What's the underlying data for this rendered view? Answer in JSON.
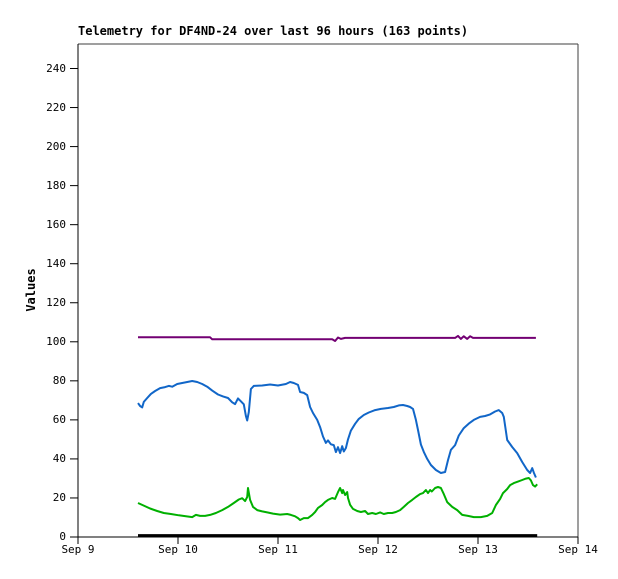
{
  "window": {
    "background_color": "#ffffff",
    "text_color": "#000000"
  },
  "chart_data": {
    "type": "line",
    "title": "Telemetry for DF4ND-24 over last 96 hours (163 points)",
    "xlabel": "",
    "ylabel": "Values",
    "grid": false,
    "legend": null,
    "x_axis": {
      "tick_labels": [
        "Sep 9",
        "Sep 10",
        "Sep 11",
        "Sep 12",
        "Sep 13",
        "Sep 14"
      ],
      "x_encoding": "hours since Sep 9 00:00",
      "range_hours": [
        0,
        120
      ],
      "data_span_hours": [
        14.4,
        110.2
      ]
    },
    "y_axis": {
      "min": 0,
      "max": 240,
      "tick_step": 20,
      "ticks": [
        0,
        20,
        40,
        60,
        80,
        100,
        120,
        140,
        160,
        180,
        200,
        220,
        240
      ]
    },
    "frame_colors": {
      "left_bottom": "#000000",
      "top_right": "#3f3f3f"
    },
    "series": [
      {
        "name": "purple-line",
        "color": "#730073",
        "width": 2,
        "points": [
          [
            14.4,
            102.3
          ],
          [
            31.7,
            102.3
          ],
          [
            32.2,
            101.3
          ],
          [
            61.0,
            101.3
          ],
          [
            61.7,
            100.4
          ],
          [
            62.4,
            102.2
          ],
          [
            63.1,
            101.5
          ],
          [
            64.1,
            102.0
          ],
          [
            90.5,
            102.0
          ],
          [
            91.2,
            103.0
          ],
          [
            91.9,
            101.5
          ],
          [
            92.6,
            102.8
          ],
          [
            93.4,
            101.5
          ],
          [
            94.1,
            102.8
          ],
          [
            94.8,
            102.0
          ],
          [
            109.9,
            102.0
          ]
        ]
      },
      {
        "name": "blue-line",
        "color": "#1166c8",
        "width": 2,
        "points": [
          [
            14.4,
            68.6
          ],
          [
            14.9,
            67.1
          ],
          [
            15.4,
            66.4
          ],
          [
            15.8,
            69.2
          ],
          [
            16.6,
            71.2
          ],
          [
            17.5,
            73.3
          ],
          [
            18.5,
            74.8
          ],
          [
            19.7,
            76.3
          ],
          [
            20.9,
            76.8
          ],
          [
            21.8,
            77.4
          ],
          [
            22.6,
            77.0
          ],
          [
            23.8,
            78.4
          ],
          [
            25.0,
            78.9
          ],
          [
            26.2,
            79.4
          ],
          [
            27.4,
            79.9
          ],
          [
            28.6,
            79.4
          ],
          [
            29.8,
            78.4
          ],
          [
            31.0,
            77.0
          ],
          [
            32.2,
            75.0
          ],
          [
            33.6,
            73.0
          ],
          [
            34.8,
            72.0
          ],
          [
            36.0,
            71.2
          ],
          [
            37.0,
            69.0
          ],
          [
            37.7,
            68.1
          ],
          [
            38.4,
            71.0
          ],
          [
            39.1,
            69.5
          ],
          [
            39.8,
            68.0
          ],
          [
            40.3,
            62.0
          ],
          [
            40.6,
            59.7
          ],
          [
            41.0,
            64.0
          ],
          [
            41.5,
            75.8
          ],
          [
            42.2,
            77.4
          ],
          [
            44.2,
            77.6
          ],
          [
            46.1,
            78.1
          ],
          [
            48.0,
            77.6
          ],
          [
            49.9,
            78.4
          ],
          [
            50.9,
            79.4
          ],
          [
            51.8,
            78.9
          ],
          [
            52.8,
            77.9
          ],
          [
            53.3,
            74.3
          ],
          [
            54.2,
            73.8
          ],
          [
            55.0,
            72.7
          ],
          [
            55.7,
            66.6
          ],
          [
            56.4,
            63.5
          ],
          [
            57.4,
            60.0
          ],
          [
            58.1,
            56.3
          ],
          [
            58.8,
            51.5
          ],
          [
            59.5,
            48.2
          ],
          [
            60.0,
            49.5
          ],
          [
            60.7,
            47.5
          ],
          [
            61.4,
            47.1
          ],
          [
            61.9,
            43.5
          ],
          [
            62.4,
            46.0
          ],
          [
            62.9,
            43.0
          ],
          [
            63.4,
            46.5
          ],
          [
            63.8,
            43.8
          ],
          [
            64.3,
            45.6
          ],
          [
            64.8,
            50.0
          ],
          [
            65.5,
            54.5
          ],
          [
            66.5,
            58.0
          ],
          [
            67.4,
            60.5
          ],
          [
            68.6,
            62.5
          ],
          [
            69.8,
            63.8
          ],
          [
            71.3,
            65.0
          ],
          [
            72.7,
            65.6
          ],
          [
            74.4,
            66.1
          ],
          [
            75.8,
            66.6
          ],
          [
            77.0,
            67.4
          ],
          [
            78.0,
            67.6
          ],
          [
            79.0,
            67.1
          ],
          [
            79.7,
            66.6
          ],
          [
            80.4,
            65.6
          ],
          [
            81.1,
            60.0
          ],
          [
            81.6,
            54.8
          ],
          [
            82.3,
            47.4
          ],
          [
            83.0,
            43.6
          ],
          [
            83.8,
            40.0
          ],
          [
            84.7,
            36.9
          ],
          [
            85.9,
            34.3
          ],
          [
            87.1,
            32.8
          ],
          [
            88.1,
            33.3
          ],
          [
            88.8,
            39.4
          ],
          [
            89.5,
            44.6
          ],
          [
            90.5,
            47.1
          ],
          [
            91.4,
            52.0
          ],
          [
            92.6,
            55.8
          ],
          [
            93.8,
            58.1
          ],
          [
            95.0,
            60.0
          ],
          [
            96.5,
            61.5
          ],
          [
            97.7,
            62.0
          ],
          [
            98.9,
            62.8
          ],
          [
            100.1,
            64.3
          ],
          [
            101.0,
            65.0
          ],
          [
            101.8,
            63.5
          ],
          [
            102.2,
            61.5
          ],
          [
            103.0,
            49.7
          ],
          [
            104.2,
            46.1
          ],
          [
            105.4,
            43.0
          ],
          [
            106.6,
            38.4
          ],
          [
            107.8,
            34.3
          ],
          [
            108.5,
            32.8
          ],
          [
            109.0,
            35.3
          ],
          [
            109.4,
            33.0
          ],
          [
            109.9,
            30.5
          ]
        ]
      },
      {
        "name": "green-line",
        "color": "#00b000",
        "width": 2,
        "points": [
          [
            14.4,
            17.4
          ],
          [
            15.8,
            16.1
          ],
          [
            17.3,
            14.6
          ],
          [
            19.0,
            13.3
          ],
          [
            20.6,
            12.3
          ],
          [
            22.3,
            11.8
          ],
          [
            24.2,
            11.1
          ],
          [
            25.9,
            10.6
          ],
          [
            27.4,
            10.2
          ],
          [
            28.3,
            11.3
          ],
          [
            29.3,
            10.8
          ],
          [
            30.5,
            10.8
          ],
          [
            31.7,
            11.3
          ],
          [
            33.1,
            12.3
          ],
          [
            34.6,
            13.8
          ],
          [
            36.0,
            15.4
          ],
          [
            37.4,
            17.4
          ],
          [
            38.6,
            19.2
          ],
          [
            39.4,
            19.9
          ],
          [
            40.1,
            18.4
          ],
          [
            40.6,
            20.5
          ],
          [
            40.8,
            25.1
          ],
          [
            41.3,
            19.0
          ],
          [
            42.0,
            15.4
          ],
          [
            43.0,
            13.8
          ],
          [
            44.2,
            13.1
          ],
          [
            45.4,
            12.6
          ],
          [
            46.8,
            12.0
          ],
          [
            48.5,
            11.5
          ],
          [
            50.2,
            11.8
          ],
          [
            51.1,
            11.3
          ],
          [
            52.1,
            10.6
          ],
          [
            52.8,
            9.7
          ],
          [
            53.3,
            8.7
          ],
          [
            54.2,
            9.7
          ],
          [
            55.2,
            9.7
          ],
          [
            56.2,
            11.3
          ],
          [
            56.9,
            12.8
          ],
          [
            57.6,
            14.9
          ],
          [
            58.6,
            16.4
          ],
          [
            59.3,
            17.9
          ],
          [
            60.0,
            19.0
          ],
          [
            61.0,
            20.0
          ],
          [
            61.7,
            19.5
          ],
          [
            62.4,
            23.0
          ],
          [
            62.9,
            25.1
          ],
          [
            63.4,
            22.5
          ],
          [
            63.6,
            24.1
          ],
          [
            64.1,
            21.5
          ],
          [
            64.6,
            23.0
          ],
          [
            64.8,
            20.0
          ],
          [
            65.3,
            16.5
          ],
          [
            66.0,
            14.4
          ],
          [
            67.0,
            13.3
          ],
          [
            67.9,
            12.8
          ],
          [
            68.9,
            13.3
          ],
          [
            69.6,
            11.8
          ],
          [
            70.6,
            12.3
          ],
          [
            71.5,
            11.8
          ],
          [
            72.5,
            12.6
          ],
          [
            73.4,
            11.8
          ],
          [
            74.4,
            12.3
          ],
          [
            75.4,
            12.3
          ],
          [
            76.3,
            12.8
          ],
          [
            77.3,
            13.8
          ],
          [
            78.2,
            15.4
          ],
          [
            79.2,
            17.4
          ],
          [
            80.2,
            19.0
          ],
          [
            81.1,
            20.5
          ],
          [
            82.1,
            22.0
          ],
          [
            82.8,
            22.5
          ],
          [
            83.5,
            24.1
          ],
          [
            84.0,
            22.5
          ],
          [
            84.5,
            24.1
          ],
          [
            84.9,
            23.3
          ],
          [
            85.7,
            25.1
          ],
          [
            86.4,
            25.6
          ],
          [
            87.1,
            25.1
          ],
          [
            87.8,
            22.0
          ],
          [
            88.6,
            17.9
          ],
          [
            89.8,
            15.4
          ],
          [
            91.0,
            13.8
          ],
          [
            92.2,
            11.3
          ],
          [
            93.6,
            10.8
          ],
          [
            95.0,
            10.2
          ],
          [
            96.7,
            10.2
          ],
          [
            98.2,
            10.8
          ],
          [
            99.4,
            12.3
          ],
          [
            100.3,
            16.4
          ],
          [
            101.3,
            19.5
          ],
          [
            102.0,
            22.5
          ],
          [
            103.0,
            24.6
          ],
          [
            103.7,
            26.6
          ],
          [
            104.6,
            27.6
          ],
          [
            105.6,
            28.4
          ],
          [
            106.6,
            29.2
          ],
          [
            107.5,
            29.9
          ],
          [
            108.2,
            30.2
          ],
          [
            108.7,
            29.0
          ],
          [
            109.2,
            26.6
          ],
          [
            109.7,
            25.8
          ],
          [
            110.2,
            27.0
          ]
        ]
      },
      {
        "name": "black-line",
        "color": "#000000",
        "width": 2.5,
        "points": [
          [
            14.4,
            0.8
          ],
          [
            110.2,
            0.8
          ]
        ]
      }
    ]
  }
}
